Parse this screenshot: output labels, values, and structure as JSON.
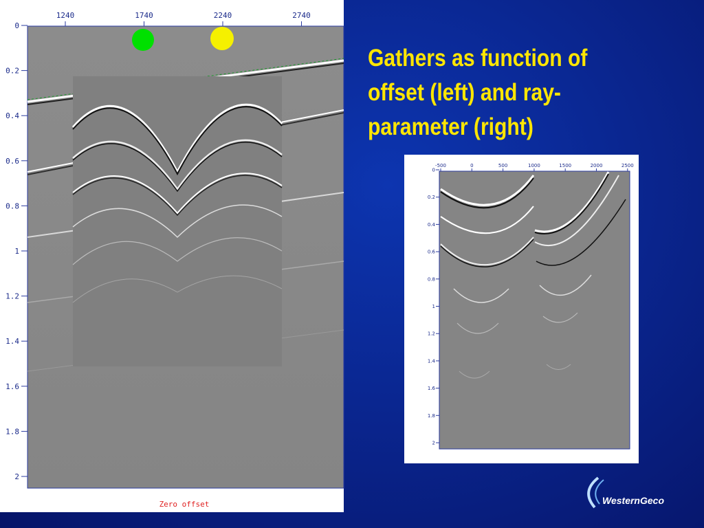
{
  "slide": {
    "title_lines": [
      "Gathers as function of",
      "offset (left) and ray-",
      "parameter (right)"
    ],
    "left_panel": {
      "x_tick_labels": [
        "1240",
        "1740",
        "2240",
        "2740"
      ],
      "y_tick_labels": [
        "0",
        "0.2",
        "0.4",
        "0.6",
        "0.8",
        "1",
        "1.2",
        "1.4",
        "1.6",
        "1.8",
        "2"
      ],
      "caption": "Zero offset"
    },
    "right_panel": {
      "x_tick_labels": [
        "-500",
        "0",
        "500",
        "1000",
        "1500",
        "2000",
        "2500"
      ],
      "y_tick_labels": [
        "0",
        "0.2",
        "0.4",
        "0.6",
        "0.8",
        "1",
        "1.2",
        "1.4",
        "1.6",
        "1.8",
        "2"
      ]
    },
    "logo": "WesternGeco"
  }
}
